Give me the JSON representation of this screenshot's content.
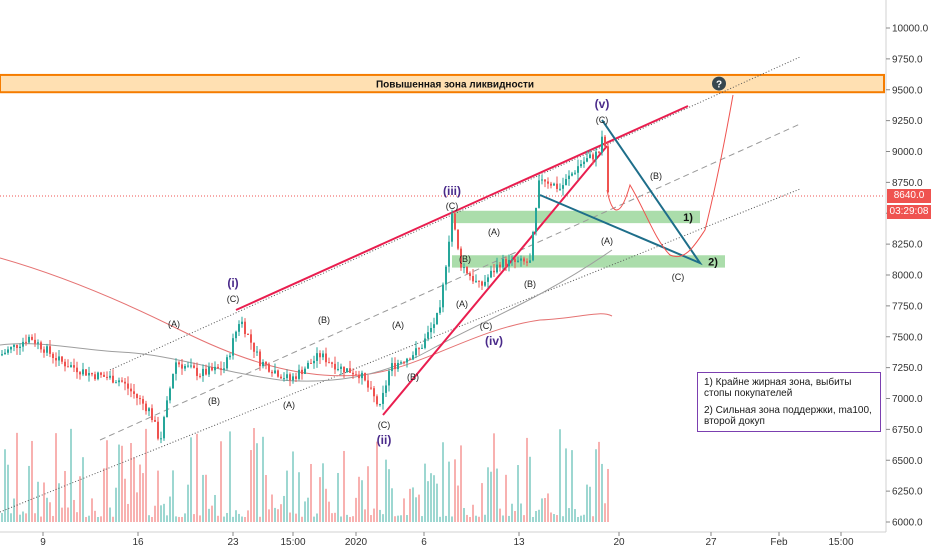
{
  "chart_data": {
    "type": "candlestick",
    "ylim": [
      6000,
      10250
    ],
    "y_ticks": [
      6000,
      6250,
      6500,
      6750,
      7000,
      7250,
      7500,
      7750,
      8000,
      8250,
      8500,
      8750,
      9000,
      9250,
      9500,
      9750,
      10000
    ],
    "y_tick_labels": [
      "6000.0",
      "6250.0",
      "6500.0",
      "6750.0",
      "7000.0",
      "7250.0",
      "7500.0",
      "7750.0",
      "8000.0",
      "8250.0",
      "8500.0",
      "8750.0",
      "9000.0",
      "9250.0",
      "9500.0",
      "9750.0",
      "10000.0"
    ],
    "x_tick_labels": [
      "9",
      "16",
      "23",
      "15:00",
      "2020",
      "6",
      "13",
      "20",
      "27",
      "Feb",
      "15:00"
    ],
    "current_price": "8640.0",
    "countdown": "03:29:08",
    "liquidity_zone": {
      "label": "Повышенная зона ликвидности",
      "from": 9480,
      "to": 9620
    },
    "support_zones": [
      {
        "label": "1)",
        "from": 8420,
        "to": 8520
      },
      {
        "label": "2)",
        "from": 8060,
        "to": 8160
      }
    ],
    "wave_labels": [
      "(i)",
      "(ii)",
      "(iii)",
      "(iv)",
      "(v)"
    ],
    "sub_labels": [
      "(A)",
      "(B)",
      "(C)"
    ],
    "colors": {
      "up": "#26a69a",
      "down": "#ef5350",
      "wedge": "#e91e4f",
      "triangle": "#1e6e8a",
      "zone_orange": "#f57c00",
      "zone_green": "#8fd18f",
      "wave": "#4a2a8a"
    }
  },
  "notes": {
    "line1": "1) Крайне жирная зона, выбиты стопы покупателей",
    "line2": "2) Сильная зона поддержки, ma100, второй докуп"
  },
  "help_icon": "?"
}
